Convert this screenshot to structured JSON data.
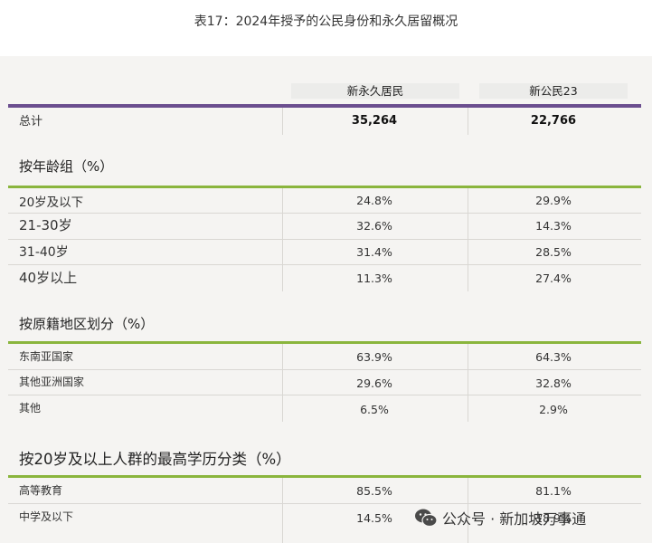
{
  "caption": "表17：2024年授予的公民身份和永久居留概况",
  "columns": {
    "pr": "新永久居民",
    "citizen": "新公民23"
  },
  "total": {
    "label": "总计",
    "pr": "35,264",
    "citizen": "22,766"
  },
  "age_section": {
    "title": "按年龄组（%）",
    "rows": [
      {
        "label": "20岁及以下",
        "pr": "24.8%",
        "citizen": "29.9%"
      },
      {
        "label": "21-30岁",
        "pr": "32.6%",
        "citizen": "14.3%"
      },
      {
        "label": "31-40岁",
        "pr": "31.4%",
        "citizen": "28.5%"
      },
      {
        "label": "40岁以上",
        "pr": "11.3%",
        "citizen": "27.4%"
      }
    ]
  },
  "origin_section": {
    "title": "按原籍地区划分（%）",
    "rows": [
      {
        "label": "东南亚国家",
        "pr": "63.9%",
        "citizen": "64.3%"
      },
      {
        "label": "其他亚洲国家",
        "pr": "29.6%",
        "citizen": "32.8%"
      },
      {
        "label": "其他",
        "pr": "6.5%",
        "citizen": "2.9%"
      }
    ]
  },
  "education_section": {
    "title": "按20岁及以上人群的最高学历分类（%）",
    "rows": [
      {
        "label": "高等教育",
        "pr": "85.5%",
        "citizen": "81.1%"
      },
      {
        "label": "中学及以下",
        "pr": "14.5%",
        "citizen": "18.9%"
      }
    ]
  },
  "watermark": {
    "text": "公众号 · 新加坡万事通",
    "icon": "wechat-icon"
  }
}
